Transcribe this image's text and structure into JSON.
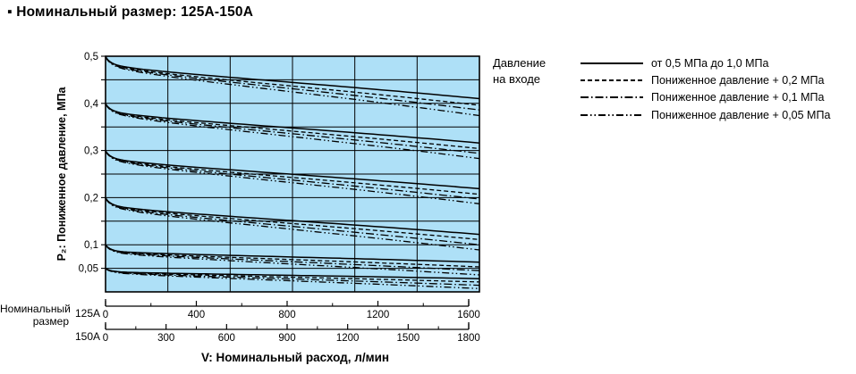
{
  "title": "▪ Номинальный размер: 125А-150А",
  "legend": {
    "heading_line1": "Давление",
    "heading_line2": "на входе"
  },
  "size_axis_label": {
    "line1": "Номинальный",
    "line2": "размер"
  },
  "chart_data": {
    "type": "line",
    "plot_bg_color": "#aee0f7",
    "line_color": "#000000",
    "ylabel": "P₂: Пониженное давление, МПа",
    "xlabel": "V: Номинальный расход, л/мин",
    "y_axis": {
      "min": 0,
      "max": 0.5,
      "tick_values": [
        0.5,
        0.4,
        0.3,
        0.2,
        0.1,
        0.05
      ],
      "grid_step": 0.05
    },
    "x_axes": [
      {
        "name": "125А",
        "min": 0,
        "max": 1600,
        "major_ticks": [
          0,
          400,
          800,
          1200,
          1600
        ],
        "minor_step": 200
      },
      {
        "name": "150А",
        "min": 0,
        "max": 1800,
        "major_ticks": [
          0,
          300,
          600,
          900,
          1200,
          1500,
          1800
        ],
        "minor_step": 150
      }
    ],
    "grid_columns": 6,
    "legend_title": "Давление на входе",
    "line_styles": [
      {
        "id": "solid",
        "label": "от 0,5 МПа до 1,0 МПа"
      },
      {
        "id": "dashed",
        "label": "Пониженное давление + 0,2 МПа"
      },
      {
        "id": "dashdot",
        "label": "Пониженное давление + 0,1 МПа"
      },
      {
        "id": "dashdotdot",
        "label": "Пониженное давление + 0,05 МПа"
      }
    ],
    "families": [
      {
        "p2_start": 0.5,
        "end_values": [
          0.41,
          0.396,
          0.386,
          0.374
        ]
      },
      {
        "p2_start": 0.4,
        "end_values": [
          0.316,
          0.304,
          0.294,
          0.283
        ]
      },
      {
        "p2_start": 0.3,
        "end_values": [
          0.219,
          0.207,
          0.197,
          0.187
        ]
      },
      {
        "p2_start": 0.2,
        "end_values": [
          0.122,
          0.111,
          0.1,
          0.089
        ]
      },
      {
        "p2_start": 0.1,
        "end_values": [
          0.063,
          0.053,
          0.045,
          0.036
        ]
      },
      {
        "p2_start": 0.05,
        "end_values": [
          0.028,
          0.021,
          0.014,
          0.007
        ]
      }
    ]
  }
}
